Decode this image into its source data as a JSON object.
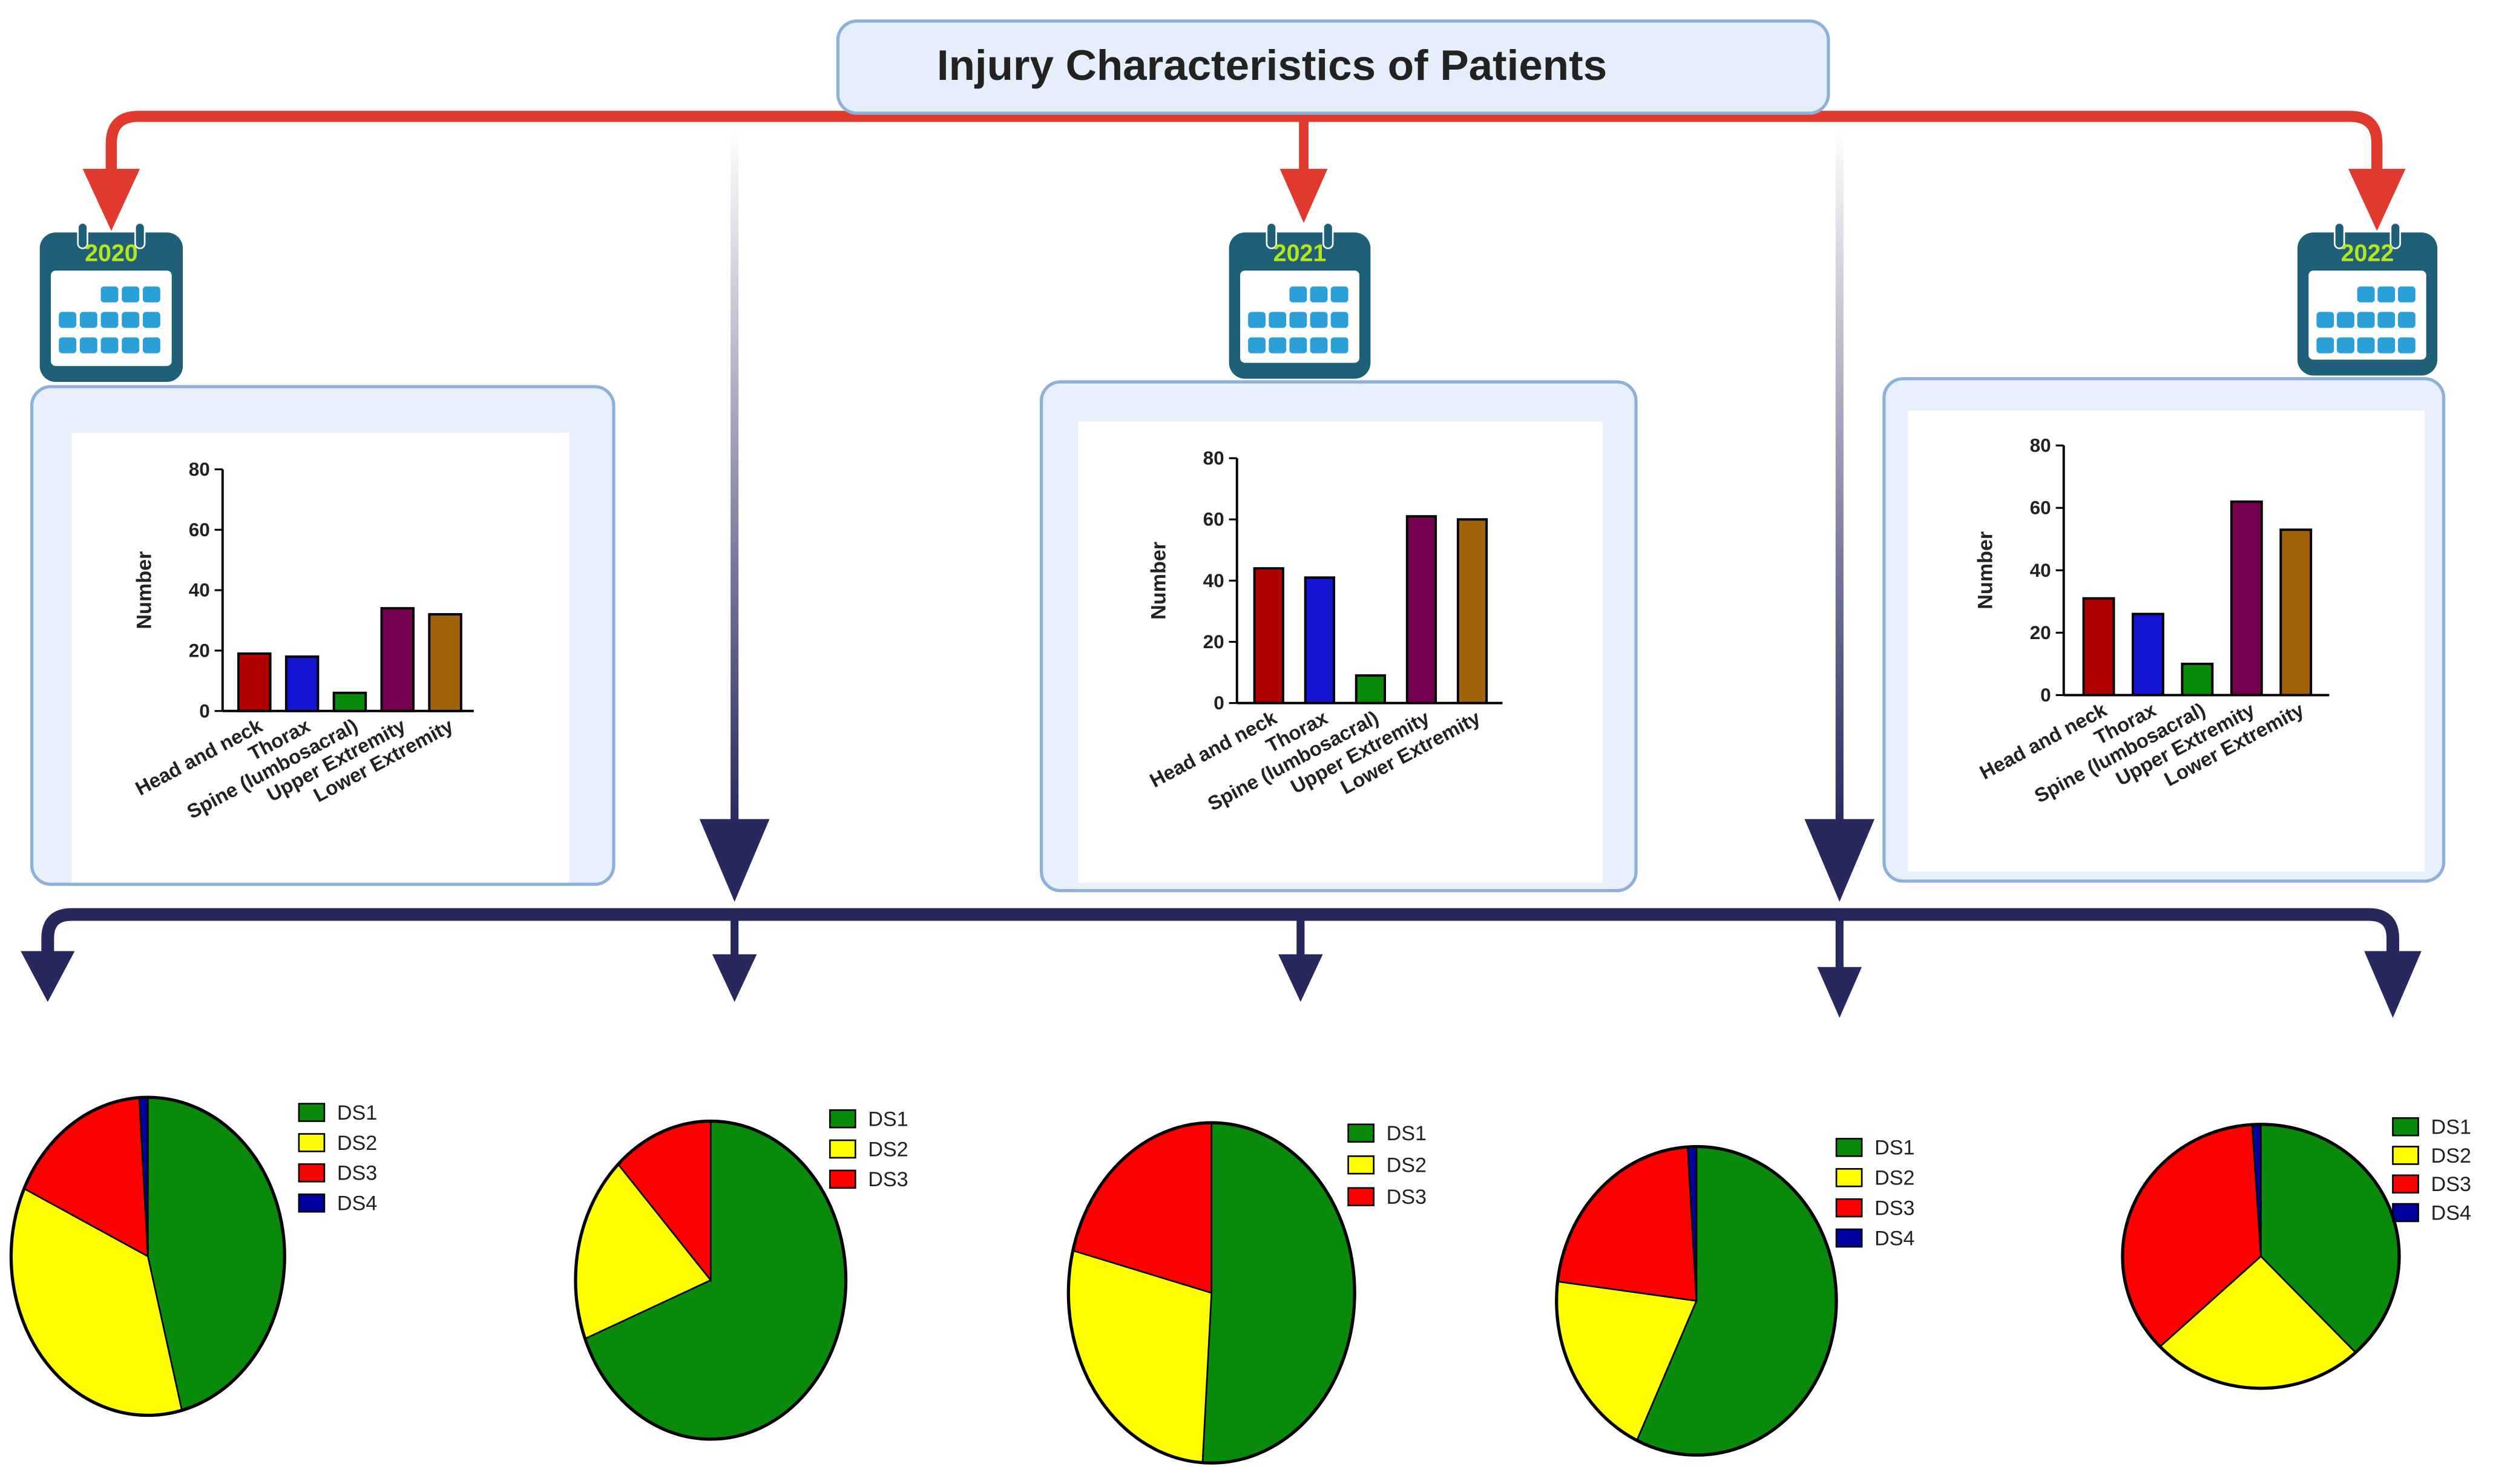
{
  "header": {
    "title": "Injury  Characteristics of Patients"
  },
  "chart_data": [
    {
      "type": "bar",
      "title": "2020",
      "ylabel": "Number",
      "categories": [
        "Head and neck",
        "Thorax",
        "Spine (lumbosacral)",
        "Upper Extremity",
        "Lower Extremity"
      ],
      "values": [
        19,
        18,
        6,
        34,
        32
      ],
      "colors": [
        "#b00000",
        "#1414d2",
        "#0a8a0a",
        "#760050",
        "#a2620c"
      ],
      "ylim": [
        0,
        80
      ],
      "yticks": [
        0,
        20,
        40,
        60,
        80
      ]
    },
    {
      "type": "bar",
      "title": "2021",
      "ylabel": "Number",
      "categories": [
        "Head and neck",
        "Thorax",
        "Spine (lumbosacral)",
        "Upper Extremity",
        "Lower Extremity"
      ],
      "values": [
        44,
        41,
        9,
        61,
        60
      ],
      "colors": [
        "#b00000",
        "#1414d2",
        "#0a8a0a",
        "#760050",
        "#a2620c"
      ],
      "ylim": [
        0,
        80
      ],
      "yticks": [
        0,
        20,
        40,
        60,
        80
      ]
    },
    {
      "type": "bar",
      "title": "2022",
      "ylabel": "Number",
      "categories": [
        "Head and neck",
        "Thorax",
        "Spine (lumbosacral)",
        "Upper Extremity",
        "Lower Extremity"
      ],
      "values": [
        31,
        26,
        10,
        62,
        53
      ],
      "colors": [
        "#b00000",
        "#1414d2",
        "#0a8a0a",
        "#760050",
        "#a2620c"
      ],
      "ylim": [
        0,
        80
      ],
      "yticks": [
        0,
        20,
        40,
        60,
        80
      ]
    },
    {
      "type": "pie",
      "categories": [
        "DS1",
        "DS2",
        "DS3",
        "DS4"
      ],
      "values": [
        46,
        36,
        17,
        1
      ],
      "colors": [
        "#0a8a0a",
        "#ffff00",
        "#ff0000",
        "#0000a0"
      ]
    },
    {
      "type": "pie",
      "categories": [
        "DS1",
        "DS2",
        "DS3"
      ],
      "values": [
        69,
        19,
        12
      ],
      "colors": [
        "#0a8a0a",
        "#ffff00",
        "#ff0000"
      ]
    },
    {
      "type": "pie",
      "categories": [
        "DS1",
        "DS2",
        "DS3"
      ],
      "values": [
        51,
        28,
        21
      ],
      "colors": [
        "#0a8a0a",
        "#ffff00",
        "#ff0000"
      ]
    },
    {
      "type": "pie",
      "categories": [
        "DS1",
        "DS2",
        "DS3",
        "DS4"
      ],
      "values": [
        57,
        20,
        22,
        1
      ],
      "colors": [
        "#0a8a0a",
        "#ffff00",
        "#ff0000",
        "#0000a0"
      ]
    },
    {
      "type": "pie",
      "categories": [
        "DS1",
        "DS2",
        "DS3",
        "DS4"
      ],
      "values": [
        38,
        25,
        36,
        1
      ],
      "colors": [
        "#0a8a0a",
        "#ffff00",
        "#ff0000",
        "#0000a0"
      ]
    }
  ]
}
